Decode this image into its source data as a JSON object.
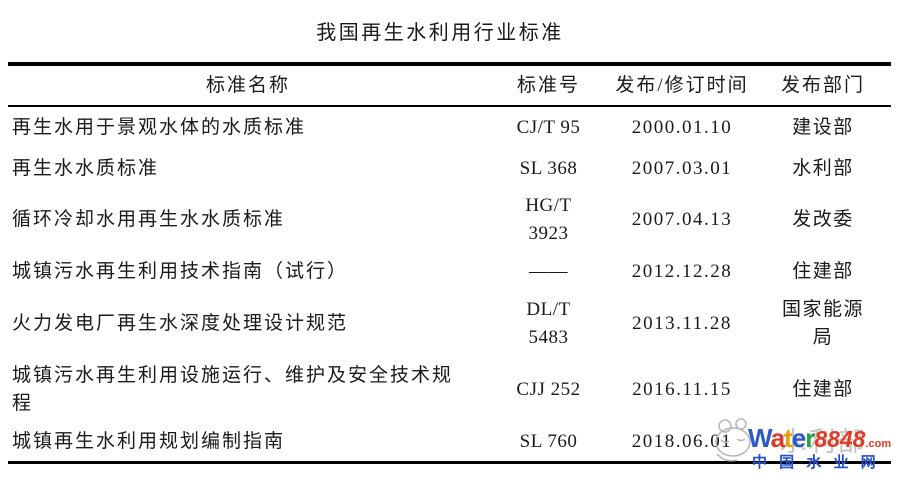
{
  "title": "我国再生水利用行业标准",
  "table": {
    "headers": {
      "name": "标准名称",
      "number": "标准号",
      "date": "发布/修订时间",
      "dept": "发布部门"
    },
    "rows": [
      {
        "name": "再生水用于景观水体的水质标准",
        "number": "CJ/T 95",
        "date": "2000.01.10",
        "dept": "建设部"
      },
      {
        "name": "再生水水质标准",
        "number": "SL 368",
        "date": "2007.03.01",
        "dept": "水利部"
      },
      {
        "name": "循环冷却水用再生水水质标准",
        "number": "HG/T\n3923",
        "date": "2007.04.13",
        "dept": "发改委"
      },
      {
        "name": "城镇污水再生利用技术指南（试行）",
        "number": "——",
        "date": "2012.12.28",
        "dept": "住建部"
      },
      {
        "name": "火力发电厂再生水深度处理设计规范",
        "number": "DL/T\n5483",
        "date": "2013.11.28",
        "dept": "国家能源\n局"
      },
      {
        "name": "城镇污水再生利用设施运行、维护及安全技术规\n程",
        "number": "CJJ 252",
        "date": "2016.11.15",
        "dept": "住建部"
      },
      {
        "name": "城镇再生水利用规划编制指南",
        "number": "SL 760",
        "date": "2018.06.01",
        "dept": "水利部"
      }
    ]
  },
  "watermark": {
    "logo_letters": [
      {
        "ch": "W",
        "color": "#2b59c8"
      },
      {
        "ch": "a",
        "color": "#df3826"
      },
      {
        "ch": "t",
        "color": "#f09c00"
      },
      {
        "ch": "e",
        "color": "#2b59c8"
      },
      {
        "ch": "r",
        "color": "#2f9e3f"
      }
    ],
    "logo_number": "8848",
    "logo_tld": ".com",
    "site_name": "中 国 水 业 网",
    "colors": {
      "number": "#e03a28",
      "tld": "#e03a28",
      "site": "#2050cc",
      "mascot": "#b8b8b8"
    }
  }
}
